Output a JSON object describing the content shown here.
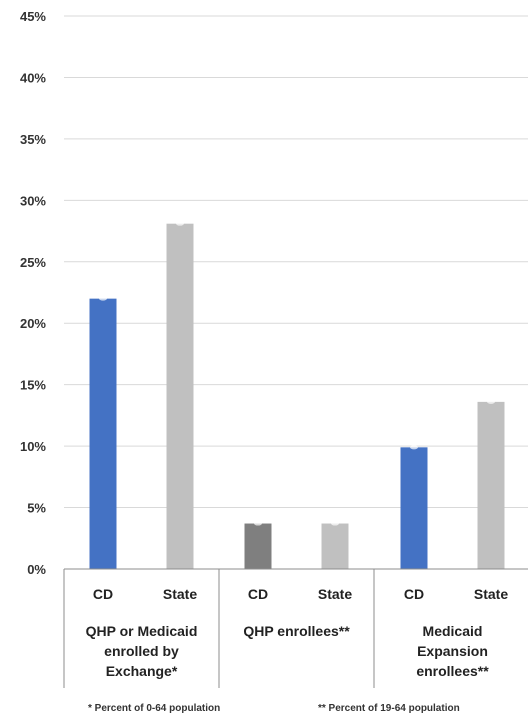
{
  "chart_data": {
    "type": "bar",
    "ylim": [
      0,
      45
    ],
    "yticks": [
      "0%",
      "5%",
      "10%",
      "15%",
      "20%",
      "25%",
      "30%",
      "35%",
      "40%",
      "45%"
    ],
    "grid": true,
    "groups": [
      {
        "label_lines": [
          "QHP or Medicaid",
          "enrolled by",
          "Exchange*"
        ],
        "bars": [
          {
            "label": "CD",
            "value": 22,
            "color": "#4472c4"
          },
          {
            "label": "State",
            "value": 28.1,
            "color": "#c0c0c0"
          }
        ]
      },
      {
        "label_lines": [
          "QHP enrollees**"
        ],
        "bars": [
          {
            "label": "CD",
            "value": 3.7,
            "color": "#7f7f7f"
          },
          {
            "label": "State",
            "value": 3.7,
            "color": "#c0c0c0"
          }
        ]
      },
      {
        "label_lines": [
          "Medicaid",
          "Expansion",
          "enrollees**"
        ],
        "bars": [
          {
            "label": "CD",
            "value": 9.9,
            "color": "#4472c4"
          },
          {
            "label": "State",
            "value": 13.6,
            "color": "#c0c0c0"
          }
        ]
      }
    ],
    "footnotes": [
      "* Percent of 0-64 population",
      "** Percent of 19-64 population"
    ]
  }
}
